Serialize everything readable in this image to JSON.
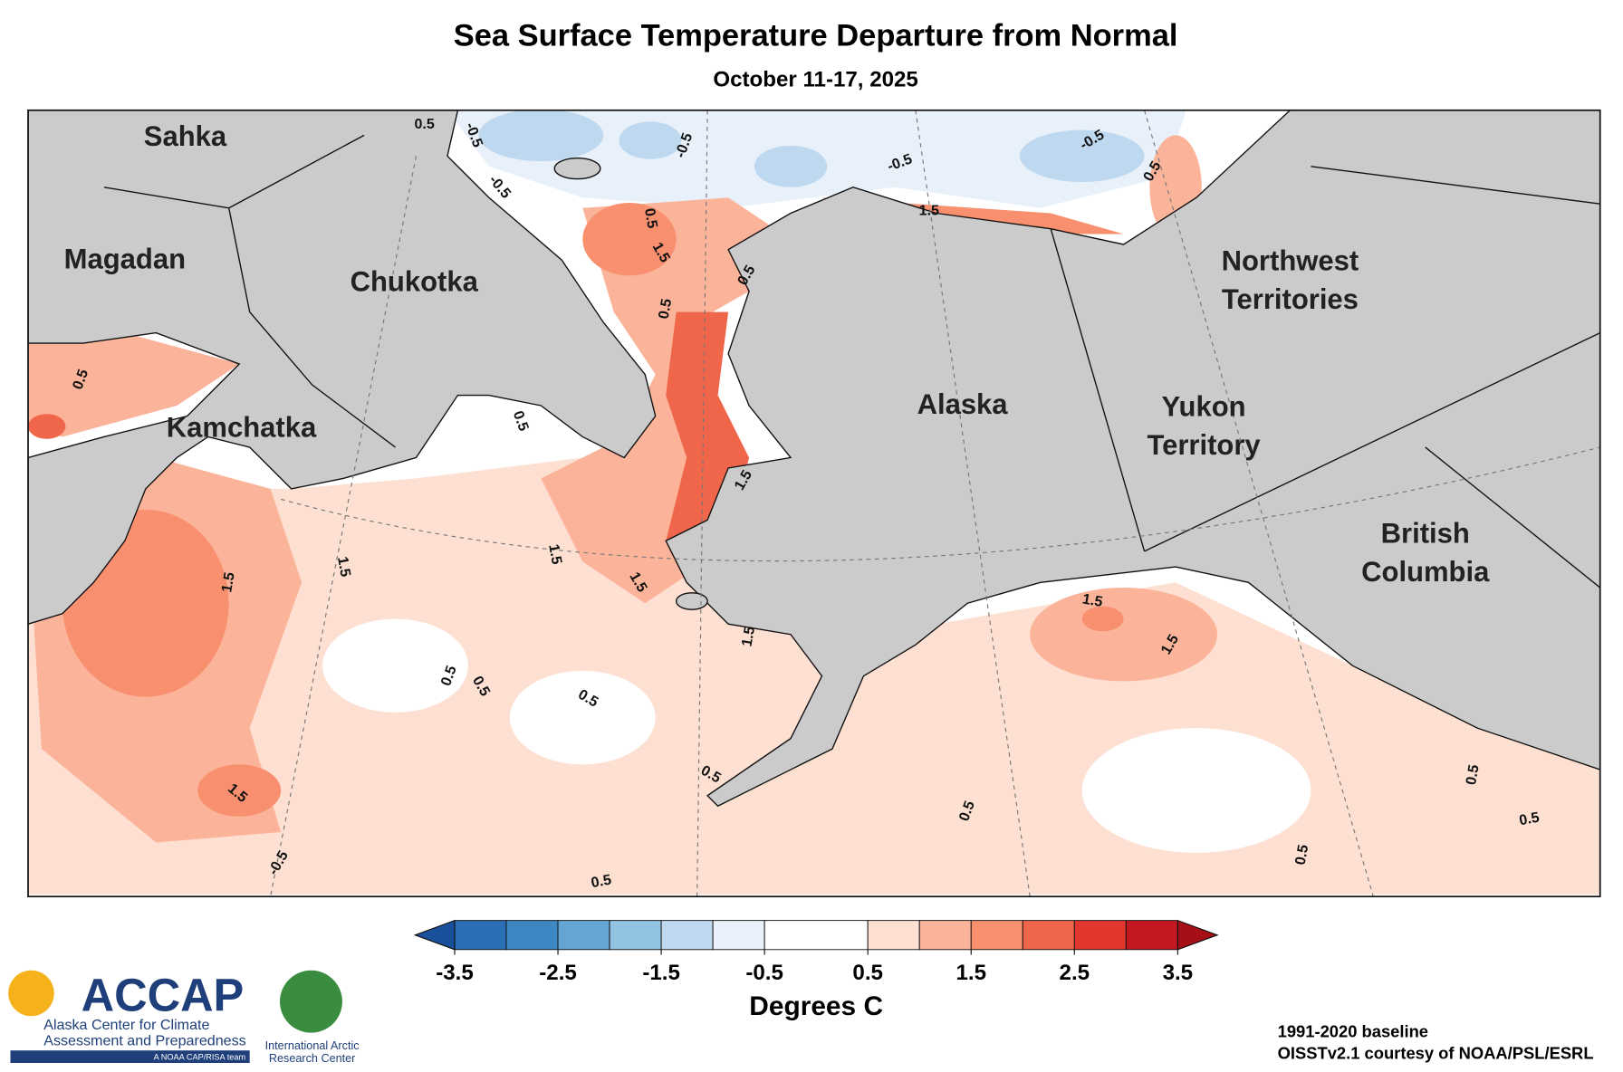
{
  "header": {
    "title": "Sea Surface Temperature Departure from Normal",
    "subtitle": "October 11-17, 2025"
  },
  "regions": [
    "Sahka",
    "Magadan",
    "Chukotka",
    "Kamchatka",
    "Alaska",
    "Northwest Territories",
    "Yukon Territory",
    "British Columbia"
  ],
  "contour_labels": [
    0.5,
    -0.5,
    -0.5,
    0.5,
    1.5,
    -0.5,
    -0.5,
    -0.5,
    1.5,
    0.5,
    0.5,
    0.5,
    0.5,
    0.5,
    1.5,
    1.5,
    1.5,
    1.5,
    1.5,
    1.5,
    1.5,
    1.5,
    0.5,
    0.5,
    0.5,
    1.5,
    0.5,
    0.5,
    -0.5,
    0.5,
    0.5,
    0.5,
    0.5
  ],
  "colorbar": {
    "bounds": [
      -3.5,
      -3,
      -2.5,
      -2,
      -1.5,
      -1,
      -0.5,
      0.5,
      1,
      1.5,
      2,
      2.5,
      3,
      3.5
    ],
    "colors": [
      "#2a6fb5",
      "#3d87c3",
      "#64a5d4",
      "#93c3e2",
      "#bed8ef",
      "#eaf1fa",
      "#ffffff",
      "#fde0d2",
      "#fbb49a",
      "#f8906f",
      "#f0664a",
      "#e2362e",
      "#c3181f"
    ],
    "low_color": "#1a4f9c",
    "high_color": "#a50f15",
    "ticks": [
      -3.5,
      -2.5,
      -1.5,
      -0.5,
      0.5,
      1.5,
      2.5,
      3.5
    ],
    "label": "Degrees C"
  },
  "footer": {
    "baseline": "1991-2020 baseline",
    "credit": "OISSTv2.1 courtesy of NOAA/PSL/ESRL",
    "accap": "ACCAP",
    "accap_line1": "Alaska Center for Climate",
    "accap_line2": "Assessment and Preparedness",
    "accap_line3": "A NOAA CAP/RISA team",
    "iarc": "International Arctic Research Center"
  }
}
